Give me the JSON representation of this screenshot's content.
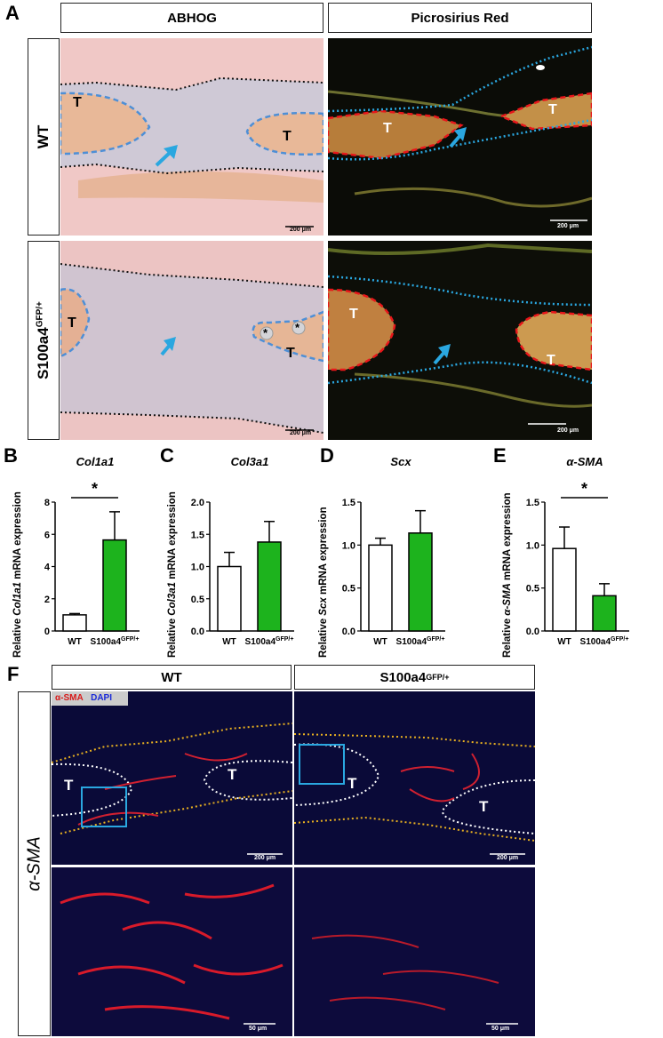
{
  "panel_A": {
    "letter": "A",
    "col_headers": [
      "ABHOG",
      "Picrosirius Red"
    ],
    "row_headers": [
      "WT",
      "S100a4GFP/+"
    ],
    "tendon_label": "T",
    "asterisk": "*",
    "scale_bar": "200 μm"
  },
  "charts": [
    {
      "letter": "B",
      "title": "Col1a1",
      "ylabel_parts": [
        "Relative ",
        "Col1a1",
        " mRNA expression"
      ],
      "significance": "*",
      "chart_data": {
        "type": "bar",
        "categories": [
          "WT",
          "S100a4GFP/+"
        ],
        "values": [
          1.0,
          5.65
        ],
        "errors": [
          0.08,
          1.75
        ],
        "ylim": [
          0,
          8
        ],
        "yticks": [
          0,
          2,
          4,
          6,
          8
        ],
        "ytick_labels": [
          "0",
          "2",
          "4",
          "6",
          "8"
        ]
      }
    },
    {
      "letter": "C",
      "title": "Col3a1",
      "ylabel_parts": [
        "Relative ",
        "Col3a1",
        " mRNA expression"
      ],
      "significance": "",
      "chart_data": {
        "type": "bar",
        "categories": [
          "WT",
          "S100a4GFP/+"
        ],
        "values": [
          1.0,
          1.38
        ],
        "errors": [
          0.22,
          0.32
        ],
        "ylim": [
          0,
          2.0
        ],
        "yticks": [
          0,
          0.5,
          1.0,
          1.5,
          2.0
        ],
        "ytick_labels": [
          "0.0",
          "0.5",
          "1.0",
          "1.5",
          "2.0"
        ]
      }
    },
    {
      "letter": "D",
      "title": "Scx",
      "ylabel_parts": [
        "Relative ",
        "Scx",
        " mRNA expression"
      ],
      "significance": "",
      "chart_data": {
        "type": "bar",
        "categories": [
          "WT",
          "S100a4GFP/+"
        ],
        "values": [
          1.0,
          1.14
        ],
        "errors": [
          0.08,
          0.26
        ],
        "ylim": [
          0,
          1.5
        ],
        "yticks": [
          0,
          0.5,
          1.0,
          1.5
        ],
        "ytick_labels": [
          "0.0",
          "0.5",
          "1.0",
          "1.5"
        ]
      }
    },
    {
      "letter": "E",
      "title": "α-SMA",
      "ylabel_parts": [
        "Relative ",
        "α-SMA",
        " mRNA expression"
      ],
      "significance": "*",
      "chart_data": {
        "type": "bar",
        "categories": [
          "WT",
          "S100a4GFP/+"
        ],
        "values": [
          0.96,
          0.41
        ],
        "errors": [
          0.25,
          0.14
        ],
        "ylim": [
          0,
          1.5
        ],
        "yticks": [
          0,
          0.5,
          1.0,
          1.5
        ],
        "ytick_labels": [
          "0.0",
          "0.5",
          "1.0",
          "1.5"
        ]
      }
    }
  ],
  "panel_F": {
    "letter": "F",
    "col_headers": [
      "WT",
      "S100a4GFP/+"
    ],
    "row_header": "α-SMA",
    "legend_sma": "α-SMA",
    "legend_dapi": "DAPI",
    "tendon_label": "T",
    "scale_bar_low": "200 μm",
    "scale_bar_high": "50 μm"
  },
  "colors": {
    "wt_bar": "#ffffff",
    "mutant_bar": "#1db31d",
    "blue_outline": "#4e8fd6",
    "red_outline": "#e8161a",
    "cyan_arrow": "#2aa7e0"
  }
}
